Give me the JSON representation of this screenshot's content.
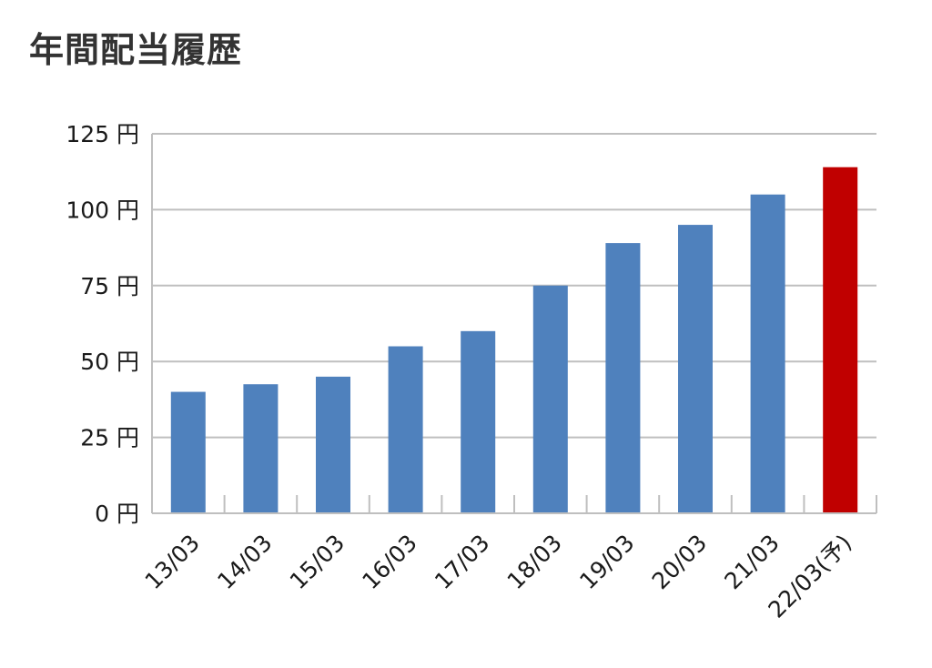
{
  "chart_data": {
    "type": "bar",
    "title": "年間配当履歴",
    "categories": [
      "13/03",
      "14/03",
      "15/03",
      "16/03",
      "17/03",
      "18/03",
      "19/03",
      "20/03",
      "21/03",
      "22/03(予)"
    ],
    "values": [
      40,
      42.5,
      45,
      55,
      60,
      75,
      89,
      95,
      105,
      114
    ],
    "ylim": [
      0,
      125
    ],
    "yticks": [
      0,
      25,
      50,
      75,
      100,
      125
    ],
    "y_unit": "円",
    "ytick_labels": [
      "0 円",
      "25 円",
      "50 円",
      "75 円",
      "100 円",
      "125 円"
    ],
    "grid": true,
    "colors": {
      "actual": "#4f81bd",
      "forecast": "#c00000",
      "grid": "#bfbfbf"
    },
    "forecast_categories": [
      "22/03(予)"
    ]
  }
}
